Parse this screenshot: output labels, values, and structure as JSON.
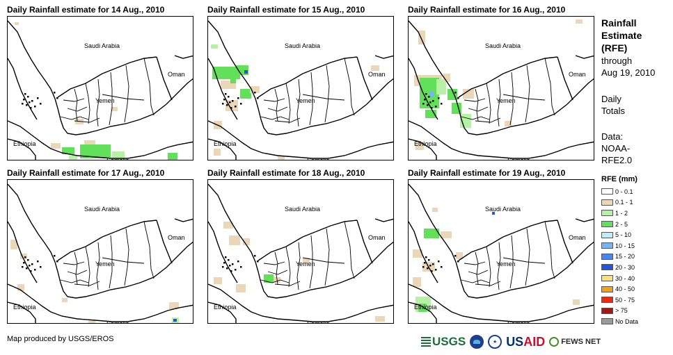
{
  "panels": [
    {
      "title": "Daily Rainfall estimate for 14 Aug., 2010",
      "rain": [
        {
          "c": "t",
          "x": 97,
          "y": 147,
          "w": 12,
          "h": 8
        },
        {
          "c": "t",
          "x": 148,
          "y": 130,
          "w": 10,
          "h": 6
        },
        {
          "c": "g",
          "x": 78,
          "y": 188,
          "w": 18,
          "h": 10
        },
        {
          "c": "g",
          "x": 104,
          "y": 184,
          "w": 44,
          "h": 20
        },
        {
          "c": "gl",
          "x": 150,
          "y": 194,
          "w": 18,
          "h": 10
        },
        {
          "c": "t",
          "x": 62,
          "y": 182,
          "w": 14,
          "h": 8
        },
        {
          "c": "t",
          "x": 110,
          "y": 178,
          "w": 16,
          "h": 6
        },
        {
          "c": "b",
          "x": 90,
          "y": 200,
          "w": 5,
          "h": 4
        },
        {
          "c": "g",
          "x": 230,
          "y": 196,
          "w": 14,
          "h": 10
        },
        {
          "c": "t",
          "x": 10,
          "y": 8,
          "w": 6,
          "h": 4
        },
        {
          "c": "gl",
          "x": 88,
          "y": 200,
          "w": 12,
          "h": 6
        }
      ]
    },
    {
      "title": "Daily Rainfall estimate for 15 Aug., 2010",
      "rain": [
        {
          "c": "gl",
          "x": 4,
          "y": 40,
          "w": 10,
          "h": 6
        },
        {
          "c": "g",
          "x": 6,
          "y": 72,
          "w": 40,
          "h": 18
        },
        {
          "c": "g",
          "x": 40,
          "y": 70,
          "w": 18,
          "h": 14
        },
        {
          "c": "t",
          "x": 18,
          "y": 92,
          "w": 22,
          "h": 12
        },
        {
          "c": "g",
          "x": 46,
          "y": 104,
          "w": 16,
          "h": 14
        },
        {
          "c": "t",
          "x": 60,
          "y": 100,
          "w": 14,
          "h": 10
        },
        {
          "c": "t",
          "x": 25,
          "y": 120,
          "w": 18,
          "h": 16
        },
        {
          "c": "b",
          "x": 52,
          "y": 77,
          "w": 5,
          "h": 5
        },
        {
          "c": "t",
          "x": 8,
          "y": 150,
          "w": 12,
          "h": 12
        },
        {
          "c": "t",
          "x": 8,
          "y": 190,
          "w": 10,
          "h": 10
        },
        {
          "c": "t",
          "x": 100,
          "y": 200,
          "w": 10,
          "h": 6
        },
        {
          "c": "g",
          "x": 32,
          "y": 90,
          "w": 8,
          "h": 6
        },
        {
          "c": "t",
          "x": 234,
          "y": 70,
          "w": 12,
          "h": 8
        }
      ]
    },
    {
      "title": "Daily Rainfall estimate for 16 Aug., 2010",
      "rain": [
        {
          "c": "t",
          "x": 14,
          "y": 20,
          "w": 10,
          "h": 20
        },
        {
          "c": "t",
          "x": 8,
          "y": 84,
          "w": 40,
          "h": 16
        },
        {
          "c": "g",
          "x": 16,
          "y": 88,
          "w": 28,
          "h": 44
        },
        {
          "c": "gl",
          "x": 40,
          "y": 90,
          "w": 14,
          "h": 22
        },
        {
          "c": "g",
          "x": 56,
          "y": 104,
          "w": 14,
          "h": 16
        },
        {
          "c": "g",
          "x": 62,
          "y": 124,
          "w": 14,
          "h": 16
        },
        {
          "c": "gl",
          "x": 74,
          "y": 140,
          "w": 16,
          "h": 20
        },
        {
          "c": "t",
          "x": 78,
          "y": 104,
          "w": 16,
          "h": 14
        },
        {
          "c": "t",
          "x": 50,
          "y": 82,
          "w": 10,
          "h": 12
        },
        {
          "c": "g",
          "x": 24,
          "y": 134,
          "w": 16,
          "h": 12
        },
        {
          "c": "t",
          "x": 10,
          "y": 180,
          "w": 12,
          "h": 12
        },
        {
          "c": "t",
          "x": 138,
          "y": 150,
          "w": 10,
          "h": 8
        },
        {
          "c": "t",
          "x": 240,
          "y": 4,
          "w": 10,
          "h": 6
        },
        {
          "c": "lb",
          "x": 30,
          "y": 108,
          "w": 6,
          "h": 8
        }
      ]
    },
    {
      "title": "Daily Rainfall estimate for 17 Aug., 2010",
      "rain": [
        {
          "c": "t",
          "x": 4,
          "y": 86,
          "w": 10,
          "h": 14
        },
        {
          "c": "t",
          "x": 18,
          "y": 106,
          "w": 10,
          "h": 8
        },
        {
          "c": "t",
          "x": 14,
          "y": 150,
          "w": 10,
          "h": 10
        },
        {
          "c": "t",
          "x": 78,
          "y": 170,
          "w": 8,
          "h": 6
        },
        {
          "c": "t",
          "x": 232,
          "y": 176,
          "w": 14,
          "h": 10
        },
        {
          "c": "gl",
          "x": 236,
          "y": 198,
          "w": 10,
          "h": 8
        },
        {
          "c": "b",
          "x": 238,
          "y": 200,
          "w": 5,
          "h": 4
        },
        {
          "c": "t",
          "x": 116,
          "y": 202,
          "w": 10,
          "h": 4
        }
      ]
    },
    {
      "title": "Daily Rainfall estimate for 18 Aug., 2010",
      "rain": [
        {
          "c": "t",
          "x": 22,
          "y": 60,
          "w": 14,
          "h": 10
        },
        {
          "c": "t",
          "x": 30,
          "y": 80,
          "w": 16,
          "h": 14
        },
        {
          "c": "t",
          "x": 50,
          "y": 84,
          "w": 10,
          "h": 10
        },
        {
          "c": "g",
          "x": 80,
          "y": 136,
          "w": 14,
          "h": 12
        },
        {
          "c": "t",
          "x": 94,
          "y": 140,
          "w": 10,
          "h": 8
        },
        {
          "c": "t",
          "x": 8,
          "y": 140,
          "w": 12,
          "h": 10
        },
        {
          "c": "t",
          "x": 40,
          "y": 150,
          "w": 14,
          "h": 12
        },
        {
          "c": "t",
          "x": 240,
          "y": 196,
          "w": 14,
          "h": 8
        },
        {
          "c": "t",
          "x": 136,
          "y": 112,
          "w": 10,
          "h": 8
        }
      ]
    },
    {
      "title": "Daily Rainfall estimate for 19 Aug., 2010",
      "rain": [
        {
          "c": "g",
          "x": 22,
          "y": 70,
          "w": 22,
          "h": 14
        },
        {
          "c": "t",
          "x": 46,
          "y": 74,
          "w": 16,
          "h": 10
        },
        {
          "c": "t",
          "x": 6,
          "y": 100,
          "w": 14,
          "h": 12
        },
        {
          "c": "t",
          "x": 20,
          "y": 118,
          "w": 18,
          "h": 14
        },
        {
          "c": "t",
          "x": 6,
          "y": 140,
          "w": 12,
          "h": 14
        },
        {
          "c": "gl",
          "x": 10,
          "y": 168,
          "w": 22,
          "h": 22
        },
        {
          "c": "g",
          "x": 14,
          "y": 178,
          "w": 12,
          "h": 12
        },
        {
          "c": "b",
          "x": 120,
          "y": 46,
          "w": 4,
          "h": 4
        },
        {
          "c": "t",
          "x": 68,
          "y": 104,
          "w": 10,
          "h": 10
        },
        {
          "c": "t",
          "x": 34,
          "y": 40,
          "w": 8,
          "h": 6
        },
        {
          "c": "t",
          "x": 236,
          "y": 172,
          "w": 10,
          "h": 8
        }
      ]
    }
  ],
  "countries": {
    "saudi": "Saudi Arabia",
    "oman": "Oman",
    "yemen": "Yemen",
    "ethiopia": "Ethiopia",
    "somalia": "Somalia"
  },
  "side": {
    "title": "Rainfall Estimate (RFE)",
    "through": "through",
    "date": "Aug 19, 2010",
    "daily": "Daily Totals",
    "data_label": "Data: NOAA-RFE2.0"
  },
  "legend": {
    "title": "RFE (mm)",
    "items": [
      {
        "label": "0 - 0.1",
        "color": "#ffffff"
      },
      {
        "label": "0.1 - 1",
        "color": "#ead7b8"
      },
      {
        "label": "1 - 2",
        "color": "#b6f1a6"
      },
      {
        "label": "2 - 5",
        "color": "#62e05a"
      },
      {
        "label": "5 - 10",
        "color": "#bfeef8"
      },
      {
        "label": "10 - 15",
        "color": "#78b4f0"
      },
      {
        "label": "15 - 20",
        "color": "#4a86ee"
      },
      {
        "label": "20 - 30",
        "color": "#1e56e0"
      },
      {
        "label": "30 - 40",
        "color": "#f8e07a"
      },
      {
        "label": "40 - 50",
        "color": "#f2a21a"
      },
      {
        "label": "50 - 75",
        "color": "#ee2a12"
      },
      {
        "label": "> 75",
        "color": "#9c1a1a"
      },
      {
        "label": "No Data",
        "color": "#9a9a9a"
      }
    ]
  },
  "rain_colors": {
    "t": "#ead7b8",
    "gl": "#b6f1a6",
    "g": "#62e05a",
    "lb": "#78b4f0",
    "b": "#1e56e0"
  },
  "footer": {
    "credit": "Map produced by USGS/EROS",
    "usgs": "USGS",
    "usaid_a": "US",
    "usaid_b": "AID",
    "fews": "FEWS NET"
  }
}
